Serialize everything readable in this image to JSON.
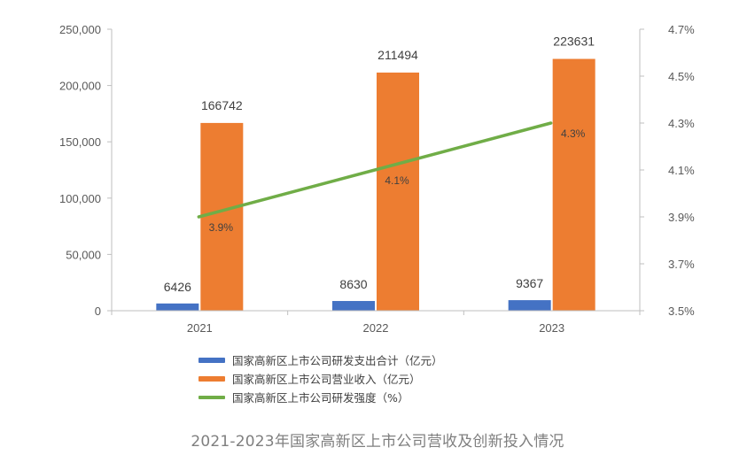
{
  "colors": {
    "expense": "#4472C4",
    "revenue": "#ED7D31",
    "intensity": "#70AD47",
    "axis": "#595959"
  },
  "chart_data": {
    "type": "bar",
    "categories": [
      "2021",
      "2022",
      "2023"
    ],
    "series": [
      {
        "name": "国家高新区上市公司研发支出合计（亿元）",
        "axis": "left",
        "kind": "bar",
        "values": [
          6426,
          8630,
          9367
        ]
      },
      {
        "name": "国家高新区上市公司营业收入（亿元）",
        "axis": "left",
        "kind": "bar",
        "values": [
          166742,
          211494,
          223631
        ]
      },
      {
        "name": "国家高新区上市公司研发强度（%）",
        "axis": "right",
        "kind": "line",
        "values": [
          3.9,
          4.1,
          4.3
        ],
        "labels": [
          "3.9%",
          "4.1%",
          "4.3%"
        ]
      }
    ],
    "y_left": {
      "ticks": [
        "0",
        "50,000",
        "100,000",
        "150,000",
        "200,000",
        "250,000"
      ],
      "ylim": [
        0,
        250000
      ]
    },
    "y_right": {
      "ticks": [
        "3.5%",
        "3.7%",
        "3.9%",
        "4.1%",
        "4.3%",
        "4.5%",
        "4.7%"
      ],
      "ylim": [
        3.5,
        4.7
      ]
    },
    "grid": false,
    "legend_position": "bottom"
  },
  "legend": [
    "国家高新区上市公司研发支出合计（亿元）",
    "国家高新区上市公司营业收入（亿元）",
    "国家高新区上市公司研发强度（%）"
  ],
  "caption": "2021-2023年国家高新区上市公司营收及创新投入情况"
}
